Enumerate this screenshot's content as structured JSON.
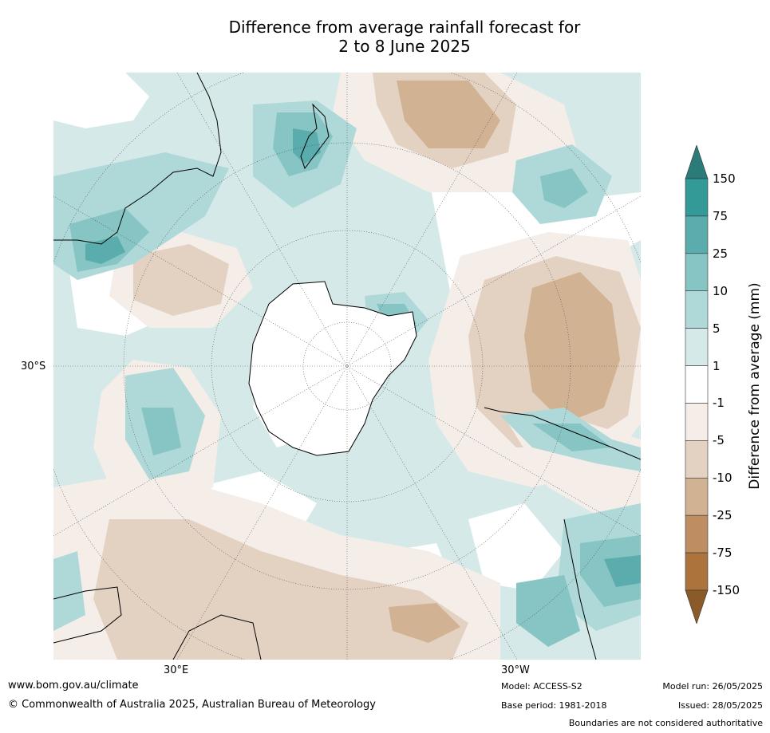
{
  "title": {
    "line1": "Difference from average rainfall forecast for",
    "line2": "2 to 8 June 2025"
  },
  "axis": {
    "lat_label": "30°S",
    "lon_labels": [
      "30°E",
      "30°W"
    ]
  },
  "legend": {
    "title": "Difference from average (mm)",
    "ticks": [
      "150",
      "75",
      "25",
      "10",
      "5",
      "1",
      "-1",
      "-5",
      "-10",
      "-25",
      "-75",
      "-150"
    ],
    "colors": {
      "over": "#2a7b7a",
      "bins": [
        "#349a98",
        "#5aacad",
        "#87c4c4",
        "#afd8d8",
        "#d6e9e9",
        "#ffffff",
        "#f4ede8",
        "#e3d1c2",
        "#d1b293",
        "#be8e62",
        "#ad733d"
      ],
      "under": "#8a5a29"
    }
  },
  "footer": {
    "website": "www.bom.gov.au/climate",
    "copyright": "© Commonwealth of Australia 2025, Australian Bureau of Meteorology",
    "model": "Model: ACCESS-S2",
    "base_period": "Base period: 1981-2018",
    "model_run": "Model run: 26/05/2025",
    "issued": "Issued: 28/05/2025",
    "disclaimer": "Boundaries are not considered authoritative"
  }
}
